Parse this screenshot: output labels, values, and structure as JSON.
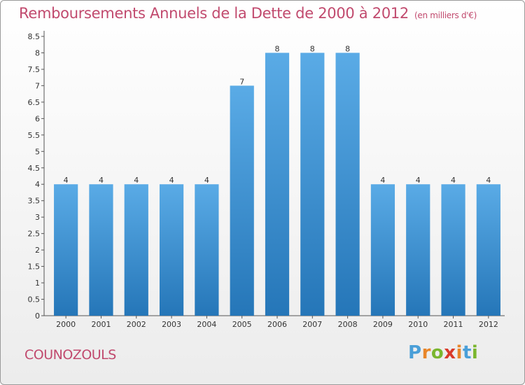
{
  "header": {
    "title": "Remboursements Annuels de la Dette de 2000 à 2012",
    "unit": "(en milliers d'€)"
  },
  "footer": {
    "commune": "COUNOZOULS",
    "logo": "Proxiti"
  },
  "colors": {
    "title": "#c14a6e",
    "bar_top": "#5aabe6",
    "bar_bottom": "#2576b8",
    "logo_letters": [
      "#4a9fd8",
      "#e8862a",
      "#7ab62f",
      "#d93a2a",
      "#e8862a",
      "#4a9fd8",
      "#7ab62f"
    ]
  },
  "chart_data": {
    "type": "bar",
    "categories": [
      "2000",
      "2001",
      "2002",
      "2003",
      "2004",
      "2005",
      "2006",
      "2007",
      "2008",
      "2009",
      "2010",
      "2011",
      "2012"
    ],
    "values": [
      4,
      4,
      4,
      4,
      4,
      7,
      8,
      8,
      8,
      4,
      4,
      4,
      4
    ],
    "data_labels": [
      "4",
      "4",
      "4",
      "4",
      "4",
      "7",
      "8",
      "8",
      "8",
      "4",
      "4",
      "4",
      "4"
    ],
    "ylim": [
      0,
      8.5
    ],
    "yticks": [
      "0",
      "0.5",
      "1",
      "1.5",
      "2",
      "2.5",
      "3",
      "3.5",
      "4",
      "4.5",
      "5",
      "5.5",
      "6",
      "6.5",
      "7",
      "7.5",
      "8",
      "8.5"
    ],
    "grid": false,
    "legend": "none"
  }
}
